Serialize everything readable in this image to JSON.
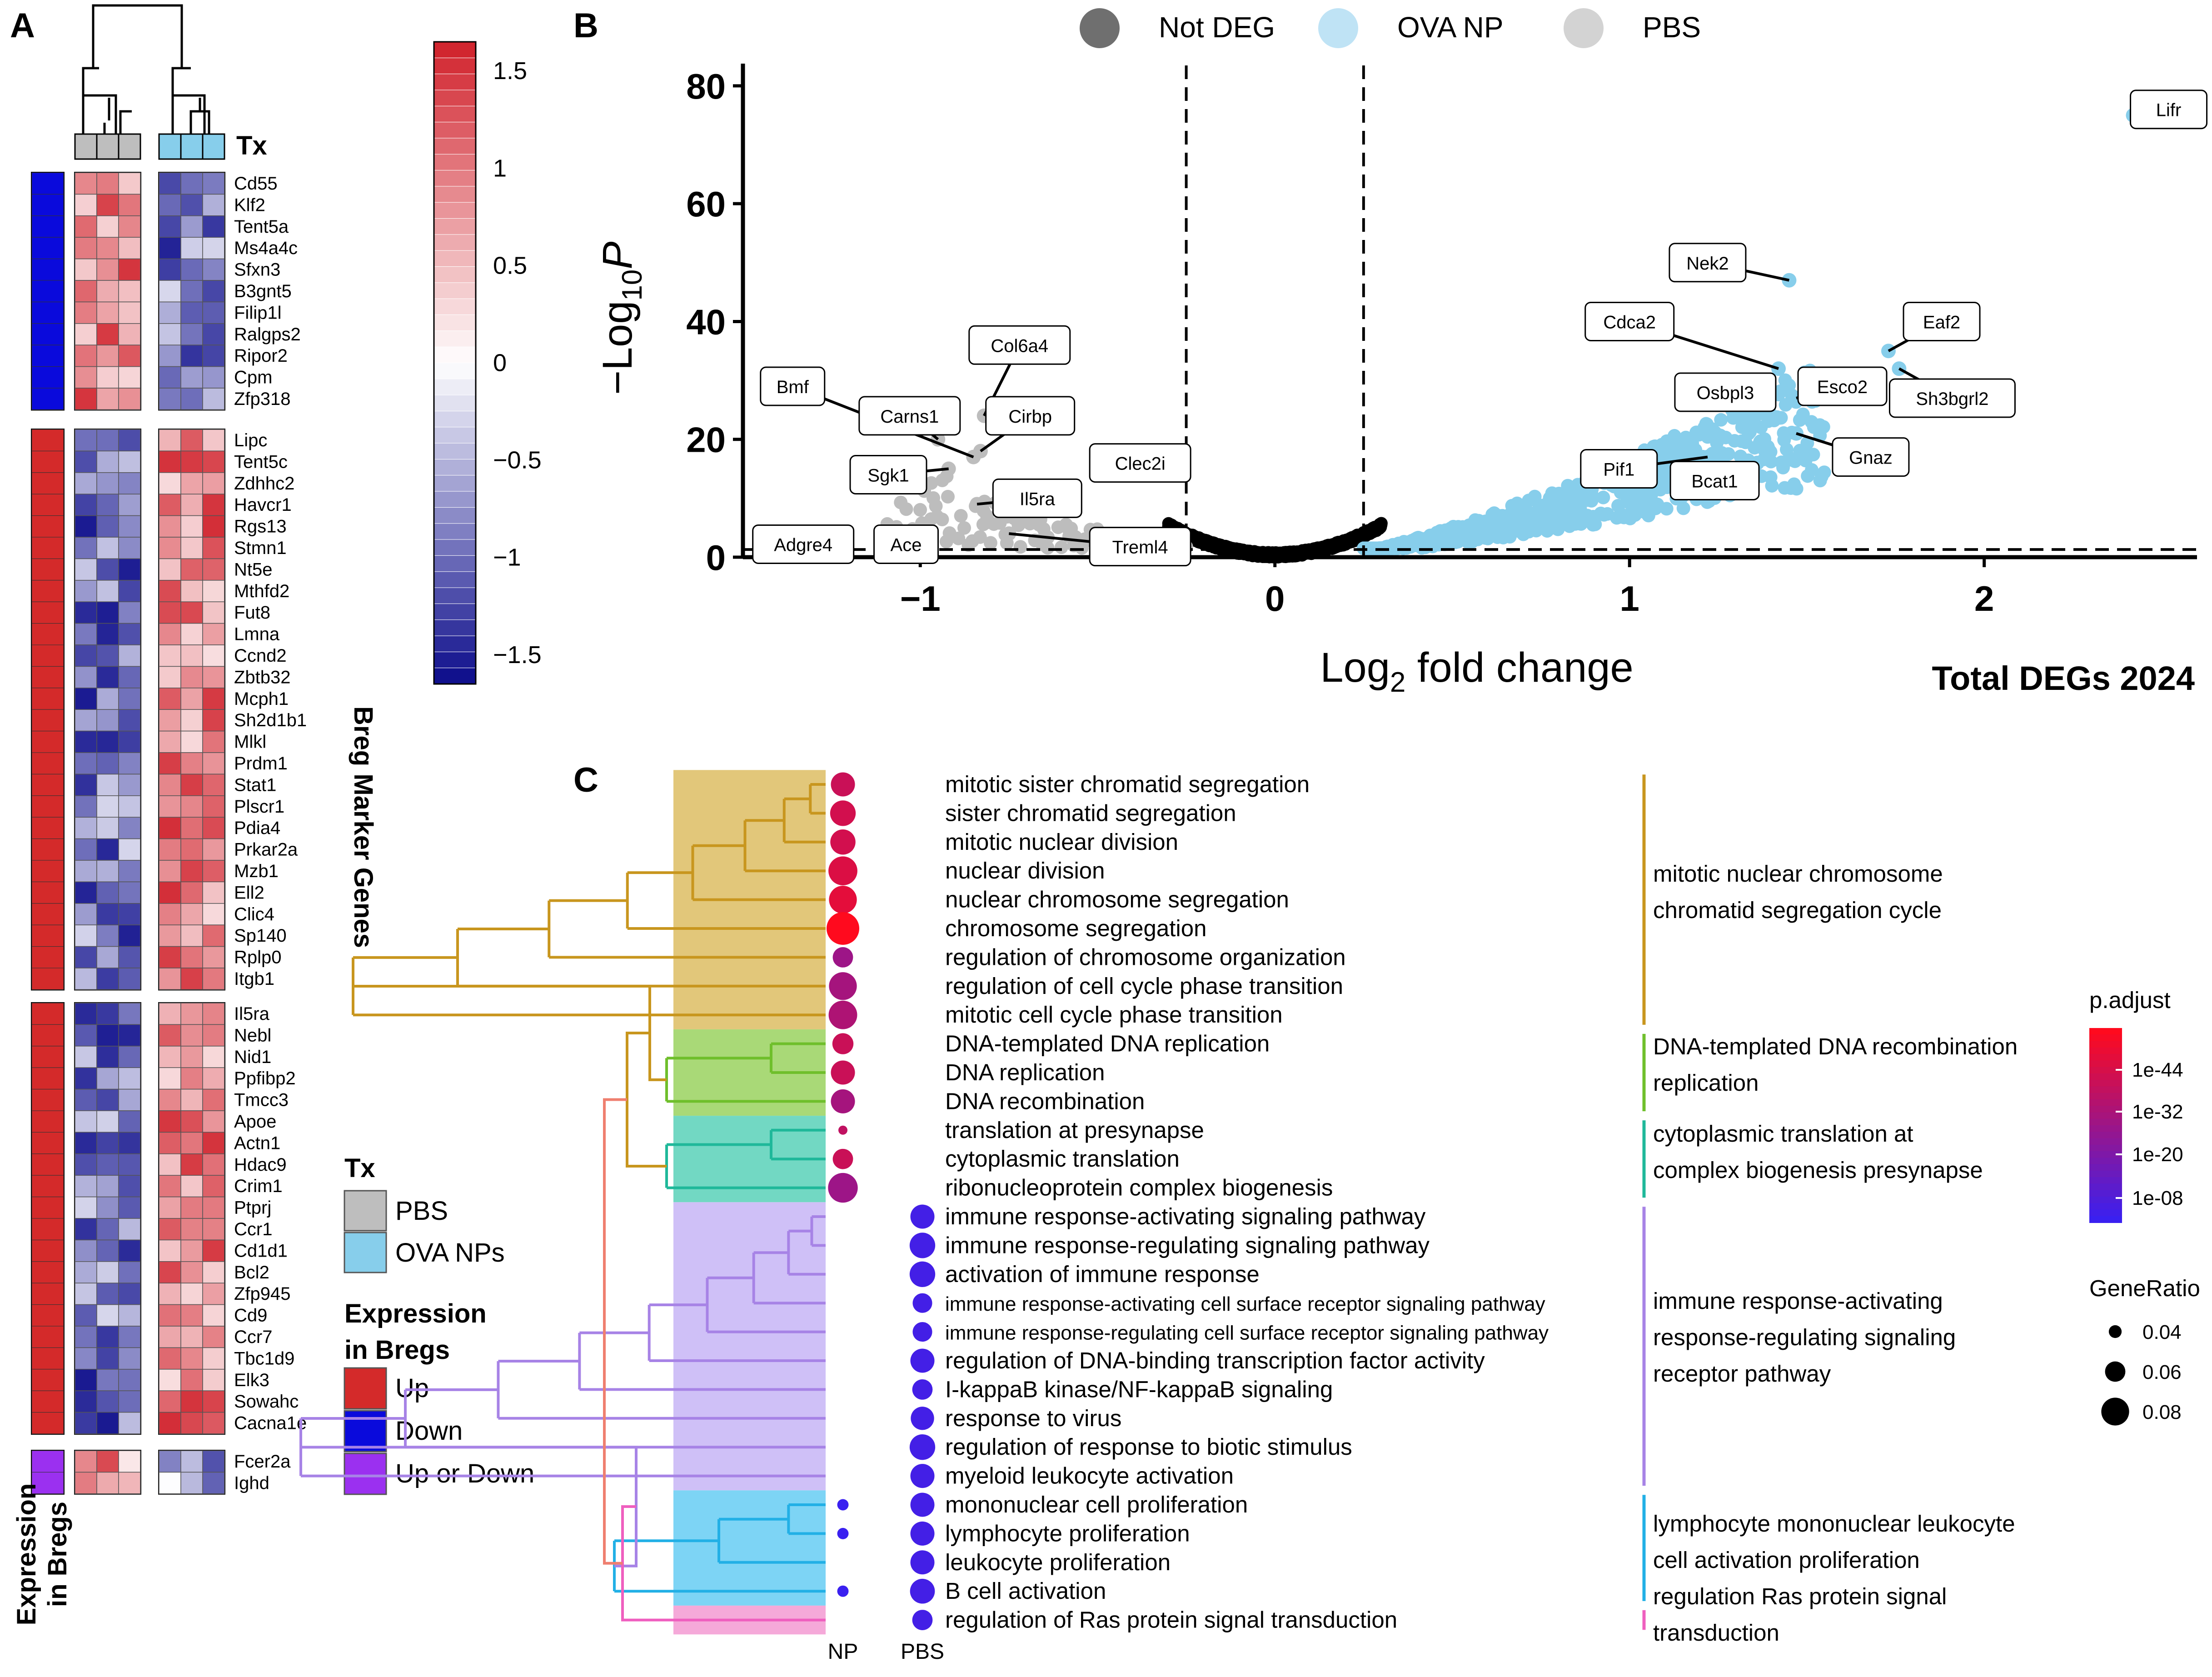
{
  "panels": {
    "a": "A",
    "b": "B",
    "c": "C"
  },
  "heatmap": {
    "tx_title": "Tx",
    "colorbar_ticks": [
      "1.5",
      "1",
      "0.5",
      "0",
      "−0.5",
      "−1",
      "−1.5"
    ],
    "colorbar_tick_values": [
      1.5,
      1,
      0.5,
      0,
      -0.5,
      -1,
      -1.5
    ],
    "colorbar_range": [
      -1.65,
      1.65
    ],
    "colors": {
      "low": "#0b0b8a",
      "mid": "#ffffff",
      "high": "#d0202a"
    },
    "side_label": "Breg Marker Genes",
    "bottom_label_line1": "Expression",
    "bottom_label_line2": "in Bregs",
    "legend": {
      "tx_title": "Tx",
      "tx_items": [
        {
          "label": "PBS",
          "color": "#bebebe"
        },
        {
          "label": "OVA NPs",
          "color": "#87ceeb"
        }
      ],
      "expr_title_line1": "Expression",
      "expr_title_line2": "in Bregs",
      "expr_items": [
        {
          "label": "Up",
          "color": "#d42a2a"
        },
        {
          "label": "Down",
          "color": "#0a0adc"
        },
        {
          "label": "Up or Down",
          "color": "#9b30f0"
        }
      ]
    },
    "groups": [
      {
        "status": "Down",
        "status_color": "#0a0adc",
        "genes": [
          "Cd55",
          "Klf2",
          "Tent5a",
          "Ms4a4c",
          "Sfxn3",
          "B3gnt5",
          "Filip1l",
          "Ralgps2",
          "Ripor2",
          "Cpm",
          "Zfp318"
        ]
      },
      {
        "status": "Up",
        "status_color": "#d42a2a",
        "genes": [
          "Lipc",
          "Tent5c",
          "Zdhhc2",
          "Havcr1",
          "Rgs13",
          "Stmn1",
          "Nt5e",
          "Mthfd2",
          "Fut8",
          "Lmna",
          "Ccnd2",
          "Zbtb32",
          "Mcph1",
          "Sh2d1b1",
          "Mlkl",
          "Prdm1",
          "Stat1",
          "Plscr1",
          "Pdia4",
          "Prkar2a",
          "Mzb1",
          "Ell2",
          "Clic4",
          "Sp140",
          "Rplp0",
          "Itgb1"
        ]
      },
      {
        "status": "Up",
        "status_color": "#d42a2a",
        "genes": [
          "Il5ra",
          "Nebl",
          "Nid1",
          "Ppfibp2",
          "Tmcc3",
          "Apoe",
          "Actn1",
          "Hdac9",
          "Crim1",
          "Ptprj",
          "Ccr1",
          "Cd1d1",
          "Bcl2",
          "Zfp945",
          "Cd9",
          "Ccr7",
          "Tbc1d9",
          "Elk3",
          "Sowahc",
          "Cacna1e"
        ]
      },
      {
        "status": "Up or Down",
        "status_color": "#9b30f0",
        "genes": [
          "Fcer2a",
          "Ighd"
        ]
      }
    ]
  },
  "volcano": {
    "legend": [
      {
        "label": "Not DEG",
        "color": "#6f6f6f"
      },
      {
        "label": "OVA NP",
        "color": "#bfe3f5"
      },
      {
        "label": "PBS",
        "color": "#d3d3d3"
      }
    ],
    "ylabel_main": "−Log",
    "ylabel_sub": "10",
    "ylabel_tail": "P",
    "xlabel_main": "Log",
    "xlabel_sub": "2",
    "xlabel_tail": " fold change",
    "total_label": "Total DEGs 2024",
    "x_ticks": [
      "−1",
      "0",
      "1",
      "2"
    ],
    "y_ticks": [
      "0",
      "20",
      "40",
      "60",
      "80"
    ],
    "colors": {
      "up": "#87ceeb",
      "down": "#bdbdbd",
      "ns": "#000000"
    }
  },
  "chart_data": [
    {
      "type": "scatter",
      "xlim": [
        -1.5,
        2.6
      ],
      "ylim": [
        0,
        83
      ],
      "x_tick_values": [
        -1,
        0,
        1,
        2
      ],
      "y_tick_values": [
        0,
        20,
        40,
        60,
        80
      ],
      "fc_cutoff": [
        -0.25,
        0.25
      ],
      "p_cutoff": 1.3,
      "labeled_points": [
        {
          "label": "Lifr",
          "x": 2.42,
          "y": 75
        },
        {
          "label": "Nek2",
          "x": 1.45,
          "y": 47
        },
        {
          "label": "Cdca2",
          "x": 1.42,
          "y": 32
        },
        {
          "label": "Eaf2",
          "x": 1.73,
          "y": 35
        },
        {
          "label": "Esco2",
          "x": 1.47,
          "y": 27
        },
        {
          "label": "Sh3bgrl2",
          "x": 1.76,
          "y": 32
        },
        {
          "label": "Osbpl3",
          "x": 1.29,
          "y": 25
        },
        {
          "label": "Gnaz",
          "x": 1.47,
          "y": 21
        },
        {
          "label": "Pif1",
          "x": 1.22,
          "y": 17
        },
        {
          "label": "Bcat1",
          "x": 1.36,
          "y": 16
        },
        {
          "label": "Bmf",
          "x": -0.85,
          "y": 17
        },
        {
          "label": "Col6a4",
          "x": -0.82,
          "y": 24
        },
        {
          "label": "Carns1",
          "x": -0.95,
          "y": 20
        },
        {
          "label": "Cirbp",
          "x": -0.83,
          "y": 18
        },
        {
          "label": "Clec2i",
          "x": -0.48,
          "y": 15
        },
        {
          "label": "Sgk1",
          "x": -0.92,
          "y": 15
        },
        {
          "label": "Il5ra",
          "x": -0.84,
          "y": 9
        },
        {
          "label": "Adgre4",
          "x": -1.28,
          "y": 3
        },
        {
          "label": "Ace",
          "x": -1.05,
          "y": 4
        },
        {
          "label": "Treml4",
          "x": -0.75,
          "y": 4
        }
      ]
    },
    {
      "type": "scatter",
      "title": "",
      "x_categories": [
        "NP",
        "PBS"
      ],
      "size_legend_title": "GeneRatio",
      "size_legend": [
        0.04,
        0.06,
        0.08
      ],
      "color_legend_title": "p.adjust",
      "color_legend_ticks": [
        "1e-44",
        "1e-32",
        "1e-20",
        "1e-08"
      ],
      "terms": [
        {
          "term": "mitotic sister chromatid segregation",
          "cluster": 0,
          "np": {
            "ratio": 0.07,
            "p": 38
          }
        },
        {
          "term": "sister chromatid segregation",
          "cluster": 0,
          "np": {
            "ratio": 0.074,
            "p": 40
          }
        },
        {
          "term": "mitotic nuclear division",
          "cluster": 0,
          "np": {
            "ratio": 0.073,
            "p": 40
          }
        },
        {
          "term": "nuclear division",
          "cluster": 0,
          "np": {
            "ratio": 0.083,
            "p": 42
          }
        },
        {
          "term": "nuclear chromosome segregation",
          "cluster": 0,
          "np": {
            "ratio": 0.08,
            "p": 44
          }
        },
        {
          "term": "chromosome segregation",
          "cluster": 0,
          "np": {
            "ratio": 0.093,
            "p": 50
          }
        },
        {
          "term": "regulation of chromosome organization",
          "cluster": 0,
          "np": {
            "ratio": 0.06,
            "p": 28
          }
        },
        {
          "term": "regulation of cell cycle phase transition",
          "cluster": 0,
          "np": {
            "ratio": 0.08,
            "p": 30
          }
        },
        {
          "term": "mitotic cell cycle phase transition",
          "cluster": 0,
          "np": {
            "ratio": 0.082,
            "p": 32
          }
        },
        {
          "term": "DNA-templated DNA replication",
          "cluster": 1,
          "np": {
            "ratio": 0.062,
            "p": 38
          }
        },
        {
          "term": "DNA replication",
          "cluster": 1,
          "np": {
            "ratio": 0.07,
            "p": 38
          }
        },
        {
          "term": "DNA recombination",
          "cluster": 1,
          "np": {
            "ratio": 0.07,
            "p": 30
          }
        },
        {
          "term": "translation at presynapse",
          "cluster": 2,
          "np": {
            "ratio": 0.03,
            "p": 36
          }
        },
        {
          "term": "cytoplasmic translation",
          "cluster": 2,
          "np": {
            "ratio": 0.06,
            "p": 38
          }
        },
        {
          "term": "ribonucleoprotein complex biogenesis",
          "cluster": 2,
          "np": {
            "ratio": 0.085,
            "p": 28
          }
        },
        {
          "term": "immune response-activating signaling pathway",
          "cluster": 3,
          "pbs": {
            "ratio": 0.07,
            "p": 8
          }
        },
        {
          "term": "immune response-regulating signaling pathway",
          "cluster": 3,
          "pbs": {
            "ratio": 0.074,
            "p": 8
          }
        },
        {
          "term": "activation of immune response",
          "cluster": 3,
          "pbs": {
            "ratio": 0.074,
            "p": 8
          }
        },
        {
          "term": "immune response-activating cell surface receptor signaling pathway",
          "cluster": 3,
          "pbs": {
            "ratio": 0.058,
            "p": 8
          }
        },
        {
          "term": "immune response-regulating cell surface receptor signaling pathway",
          "cluster": 3,
          "pbs": {
            "ratio": 0.058,
            "p": 8
          }
        },
        {
          "term": "regulation of DNA-binding transcription factor activity",
          "cluster": 3,
          "pbs": {
            "ratio": 0.07,
            "p": 8
          }
        },
        {
          "term": "I-kappaB kinase/NF-kappaB signaling",
          "cluster": 3,
          "pbs": {
            "ratio": 0.06,
            "p": 8
          }
        },
        {
          "term": "response to virus",
          "cluster": 3,
          "pbs": {
            "ratio": 0.068,
            "p": 8
          }
        },
        {
          "term": "regulation of response to biotic stimulus",
          "cluster": 3,
          "pbs": {
            "ratio": 0.074,
            "p": 8
          }
        },
        {
          "term": "myeloid leukocyte activation",
          "cluster": 3,
          "pbs": {
            "ratio": 0.07,
            "p": 8
          }
        },
        {
          "term": "mononuclear cell proliferation",
          "cluster": 4,
          "np": {
            "ratio": 0.036,
            "p": 6
          },
          "pbs": {
            "ratio": 0.07,
            "p": 8
          }
        },
        {
          "term": "lymphocyte proliferation",
          "cluster": 4,
          "np": {
            "ratio": 0.036,
            "p": 6
          },
          "pbs": {
            "ratio": 0.07,
            "p": 8
          }
        },
        {
          "term": "leukocyte proliferation",
          "cluster": 4,
          "pbs": {
            "ratio": 0.07,
            "p": 8
          }
        },
        {
          "term": "B cell activation",
          "cluster": 4,
          "np": {
            "ratio": 0.036,
            "p": 6
          },
          "pbs": {
            "ratio": 0.072,
            "p": 8
          }
        },
        {
          "term": "regulation of Ras protein signal transduction",
          "cluster": 5,
          "pbs": {
            "ratio": 0.06,
            "p": 8
          }
        }
      ],
      "clusters": [
        {
          "color": "#c8961e",
          "fill": "#e2c77a",
          "label_lines": [
            "mitotic nuclear chromosome",
            "chromatid segregation cycle"
          ]
        },
        {
          "color": "#6fbf2b",
          "fill": "#a9d977",
          "label_lines": [
            "DNA-templated DNA recombination",
            "replication"
          ]
        },
        {
          "color": "#1fb89a",
          "fill": "#72d8c3",
          "label_lines": [
            "cytoplasmic translation at",
            "complex biogenesis presynapse"
          ]
        },
        {
          "color": "#a783e6",
          "fill": "#cfc0f7",
          "label_lines": [
            "immune response-activating",
            "response-regulating signaling",
            "receptor pathway"
          ]
        },
        {
          "color": "#22b0e6",
          "fill": "#7dd4f5",
          "label_lines": [
            "lymphocyte mononuclear leukocyte",
            "cell activation proliferation"
          ]
        },
        {
          "color": "#ef5fbf",
          "fill": "#f5a9d9",
          "label_lines": [
            "regulation Ras protein signal",
            "transduction"
          ]
        }
      ]
    }
  ]
}
